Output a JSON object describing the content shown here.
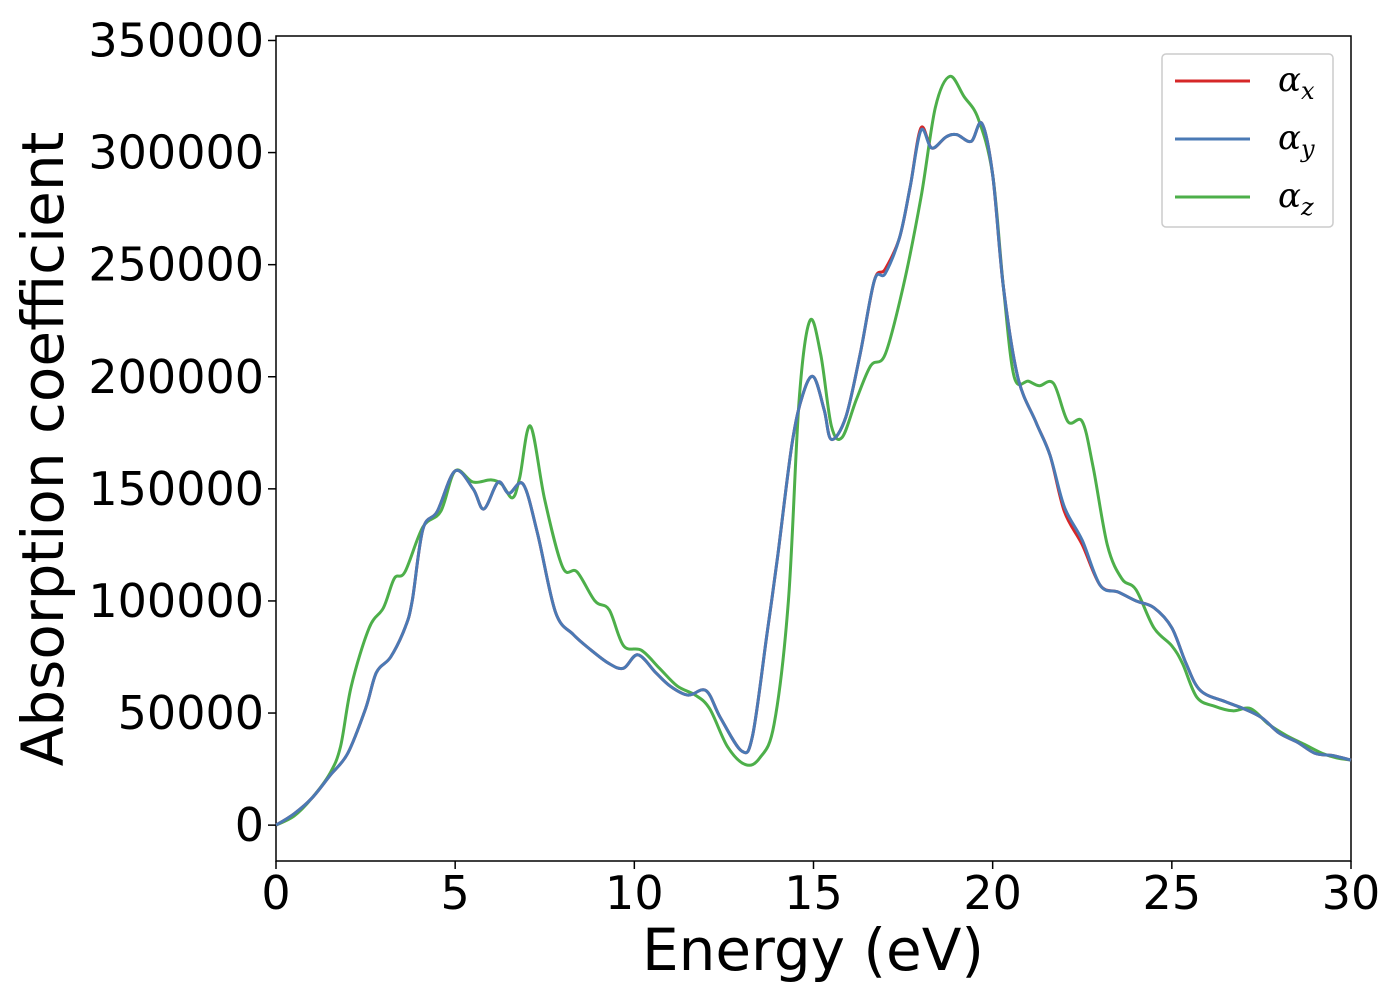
{
  "chart_data": {
    "type": "line",
    "xlabel": "Energy (eV)",
    "ylabel": "Absorption coefficient",
    "xlim": [
      0,
      30
    ],
    "ylim": [
      -16000,
      352000
    ],
    "xticks": [
      "0",
      "5",
      "10",
      "15",
      "20",
      "25",
      "30"
    ],
    "yticks": [
      "0",
      "50000",
      "100000",
      "150000",
      "200000",
      "250000",
      "300000",
      "350000"
    ],
    "grid": false,
    "legend_position": "top-right",
    "series": [
      {
        "name": "αx",
        "base": "α",
        "sub": "x",
        "color": "#d62728",
        "points": [
          [
            0,
            0
          ],
          [
            0.5,
            5000
          ],
          [
            1,
            12000
          ],
          [
            1.5,
            22000
          ],
          [
            2,
            32000
          ],
          [
            2.5,
            52000
          ],
          [
            2.8,
            68000
          ],
          [
            3.2,
            75000
          ],
          [
            3.6,
            88000
          ],
          [
            3.8,
            100000
          ],
          [
            4.1,
            132000
          ],
          [
            4.5,
            140000
          ],
          [
            5,
            158000
          ],
          [
            5.5,
            150000
          ],
          [
            5.8,
            141000
          ],
          [
            6.2,
            153000
          ],
          [
            6.5,
            148000
          ],
          [
            6.9,
            152000
          ],
          [
            7.3,
            130000
          ],
          [
            7.8,
            95000
          ],
          [
            8.3,
            85000
          ],
          [
            8.8,
            78000
          ],
          [
            9.3,
            72000
          ],
          [
            9.7,
            70000
          ],
          [
            10.1,
            76000
          ],
          [
            10.6,
            68000
          ],
          [
            11,
            62000
          ],
          [
            11.5,
            58000
          ],
          [
            12,
            60000
          ],
          [
            12.4,
            48000
          ],
          [
            13,
            33000
          ],
          [
            13.3,
            40000
          ],
          [
            13.7,
            85000
          ],
          [
            14,
            120000
          ],
          [
            14.4,
            170000
          ],
          [
            14.7,
            192000
          ],
          [
            15,
            200000
          ],
          [
            15.3,
            185000
          ],
          [
            15.5,
            172000
          ],
          [
            15.9,
            182000
          ],
          [
            16.3,
            210000
          ],
          [
            16.7,
            243000
          ],
          [
            17,
            248000
          ],
          [
            17.4,
            262000
          ],
          [
            17.7,
            285000
          ],
          [
            18,
            311000
          ],
          [
            18.3,
            302000
          ],
          [
            18.7,
            307000
          ],
          [
            19,
            308000
          ],
          [
            19.4,
            305000
          ],
          [
            19.7,
            313000
          ],
          [
            20,
            290000
          ],
          [
            20.3,
            240000
          ],
          [
            20.7,
            200000
          ],
          [
            21.2,
            180000
          ],
          [
            21.6,
            165000
          ],
          [
            22,
            140000
          ],
          [
            22.5,
            125000
          ],
          [
            23,
            107000
          ],
          [
            23.5,
            104000
          ],
          [
            24,
            100000
          ],
          [
            24.5,
            97000
          ],
          [
            25,
            88000
          ],
          [
            25.4,
            72000
          ],
          [
            25.8,
            60000
          ],
          [
            26.5,
            55000
          ],
          [
            27,
            52000
          ],
          [
            27.5,
            48000
          ],
          [
            28,
            41000
          ],
          [
            28.5,
            37000
          ],
          [
            29,
            32000
          ],
          [
            29.5,
            31000
          ],
          [
            30,
            29000
          ]
        ]
      },
      {
        "name": "αy",
        "base": "α",
        "sub": "y",
        "color": "#4a7ab5",
        "points": [
          [
            0,
            0
          ],
          [
            0.5,
            5000
          ],
          [
            1,
            12000
          ],
          [
            1.5,
            22000
          ],
          [
            2,
            32000
          ],
          [
            2.5,
            52000
          ],
          [
            2.8,
            68000
          ],
          [
            3.2,
            75000
          ],
          [
            3.6,
            88000
          ],
          [
            3.8,
            100000
          ],
          [
            4.1,
            132000
          ],
          [
            4.5,
            140000
          ],
          [
            5,
            158000
          ],
          [
            5.5,
            150000
          ],
          [
            5.8,
            141000
          ],
          [
            6.2,
            153000
          ],
          [
            6.5,
            148000
          ],
          [
            6.9,
            152000
          ],
          [
            7.3,
            130000
          ],
          [
            7.8,
            95000
          ],
          [
            8.3,
            85000
          ],
          [
            8.8,
            78000
          ],
          [
            9.3,
            72000
          ],
          [
            9.7,
            70000
          ],
          [
            10.1,
            76000
          ],
          [
            10.6,
            68000
          ],
          [
            11,
            62000
          ],
          [
            11.5,
            58000
          ],
          [
            12,
            60000
          ],
          [
            12.4,
            48000
          ],
          [
            13,
            33000
          ],
          [
            13.3,
            40000
          ],
          [
            13.7,
            85000
          ],
          [
            14,
            120000
          ],
          [
            14.4,
            170000
          ],
          [
            14.7,
            192000
          ],
          [
            15,
            200000
          ],
          [
            15.3,
            185000
          ],
          [
            15.5,
            172000
          ],
          [
            15.9,
            182000
          ],
          [
            16.3,
            210000
          ],
          [
            16.7,
            243000
          ],
          [
            17,
            246000
          ],
          [
            17.4,
            262000
          ],
          [
            17.7,
            285000
          ],
          [
            18,
            310000
          ],
          [
            18.3,
            302000
          ],
          [
            18.7,
            307000
          ],
          [
            19,
            308000
          ],
          [
            19.4,
            305000
          ],
          [
            19.7,
            313000
          ],
          [
            20,
            290000
          ],
          [
            20.3,
            240000
          ],
          [
            20.7,
            200000
          ],
          [
            21.2,
            180000
          ],
          [
            21.6,
            165000
          ],
          [
            22,
            142000
          ],
          [
            22.5,
            127000
          ],
          [
            23,
            107000
          ],
          [
            23.5,
            104000
          ],
          [
            24,
            100000
          ],
          [
            24.5,
            97000
          ],
          [
            25,
            88000
          ],
          [
            25.4,
            72000
          ],
          [
            25.8,
            60000
          ],
          [
            26.5,
            55000
          ],
          [
            27,
            52000
          ],
          [
            27.5,
            48000
          ],
          [
            28,
            41000
          ],
          [
            28.5,
            37000
          ],
          [
            29,
            32000
          ],
          [
            29.5,
            31000
          ],
          [
            30,
            29000
          ]
        ]
      },
      {
        "name": "αz",
        "base": "α",
        "sub": "z",
        "color": "#4daf4a",
        "points": [
          [
            0,
            0
          ],
          [
            0.5,
            4000
          ],
          [
            1,
            12000
          ],
          [
            1.5,
            23000
          ],
          [
            1.8,
            35000
          ],
          [
            2.1,
            62000
          ],
          [
            2.6,
            88000
          ],
          [
            3,
            97000
          ],
          [
            3.3,
            110000
          ],
          [
            3.6,
            113000
          ],
          [
            4.1,
            133000
          ],
          [
            4.6,
            140000
          ],
          [
            5,
            158000
          ],
          [
            5.5,
            153000
          ],
          [
            6,
            154000
          ],
          [
            6.3,
            152000
          ],
          [
            6.6,
            146000
          ],
          [
            6.8,
            155000
          ],
          [
            7.1,
            178000
          ],
          [
            7.5,
            145000
          ],
          [
            8,
            115000
          ],
          [
            8.4,
            113000
          ],
          [
            8.9,
            100000
          ],
          [
            9.3,
            96000
          ],
          [
            9.7,
            80000
          ],
          [
            10.2,
            78000
          ],
          [
            10.7,
            70000
          ],
          [
            11.2,
            62000
          ],
          [
            11.7,
            58000
          ],
          [
            12.1,
            52000
          ],
          [
            12.6,
            35000
          ],
          [
            13.1,
            27000
          ],
          [
            13.5,
            30000
          ],
          [
            13.9,
            45000
          ],
          [
            14.3,
            100000
          ],
          [
            14.6,
            190000
          ],
          [
            14.9,
            225000
          ],
          [
            15.2,
            210000
          ],
          [
            15.5,
            178000
          ],
          [
            15.8,
            173000
          ],
          [
            16.2,
            190000
          ],
          [
            16.6,
            205000
          ],
          [
            17,
            210000
          ],
          [
            17.5,
            240000
          ],
          [
            18,
            280000
          ],
          [
            18.4,
            320000
          ],
          [
            18.8,
            334000
          ],
          [
            19.2,
            325000
          ],
          [
            19.6,
            315000
          ],
          [
            20,
            290000
          ],
          [
            20.3,
            240000
          ],
          [
            20.6,
            200000
          ],
          [
            21,
            198000
          ],
          [
            21.3,
            196000
          ],
          [
            21.7,
            197000
          ],
          [
            22.1,
            180000
          ],
          [
            22.5,
            180000
          ],
          [
            22.8,
            160000
          ],
          [
            23.2,
            125000
          ],
          [
            23.6,
            110000
          ],
          [
            24,
            105000
          ],
          [
            24.5,
            88000
          ],
          [
            25,
            80000
          ],
          [
            25.3,
            72000
          ],
          [
            25.7,
            57000
          ],
          [
            26.2,
            53000
          ],
          [
            26.7,
            51000
          ],
          [
            27.2,
            52000
          ],
          [
            27.7,
            45000
          ],
          [
            28.2,
            40000
          ],
          [
            28.7,
            36000
          ],
          [
            29.2,
            32000
          ],
          [
            29.6,
            30000
          ],
          [
            30,
            29000
          ]
        ]
      }
    ]
  }
}
